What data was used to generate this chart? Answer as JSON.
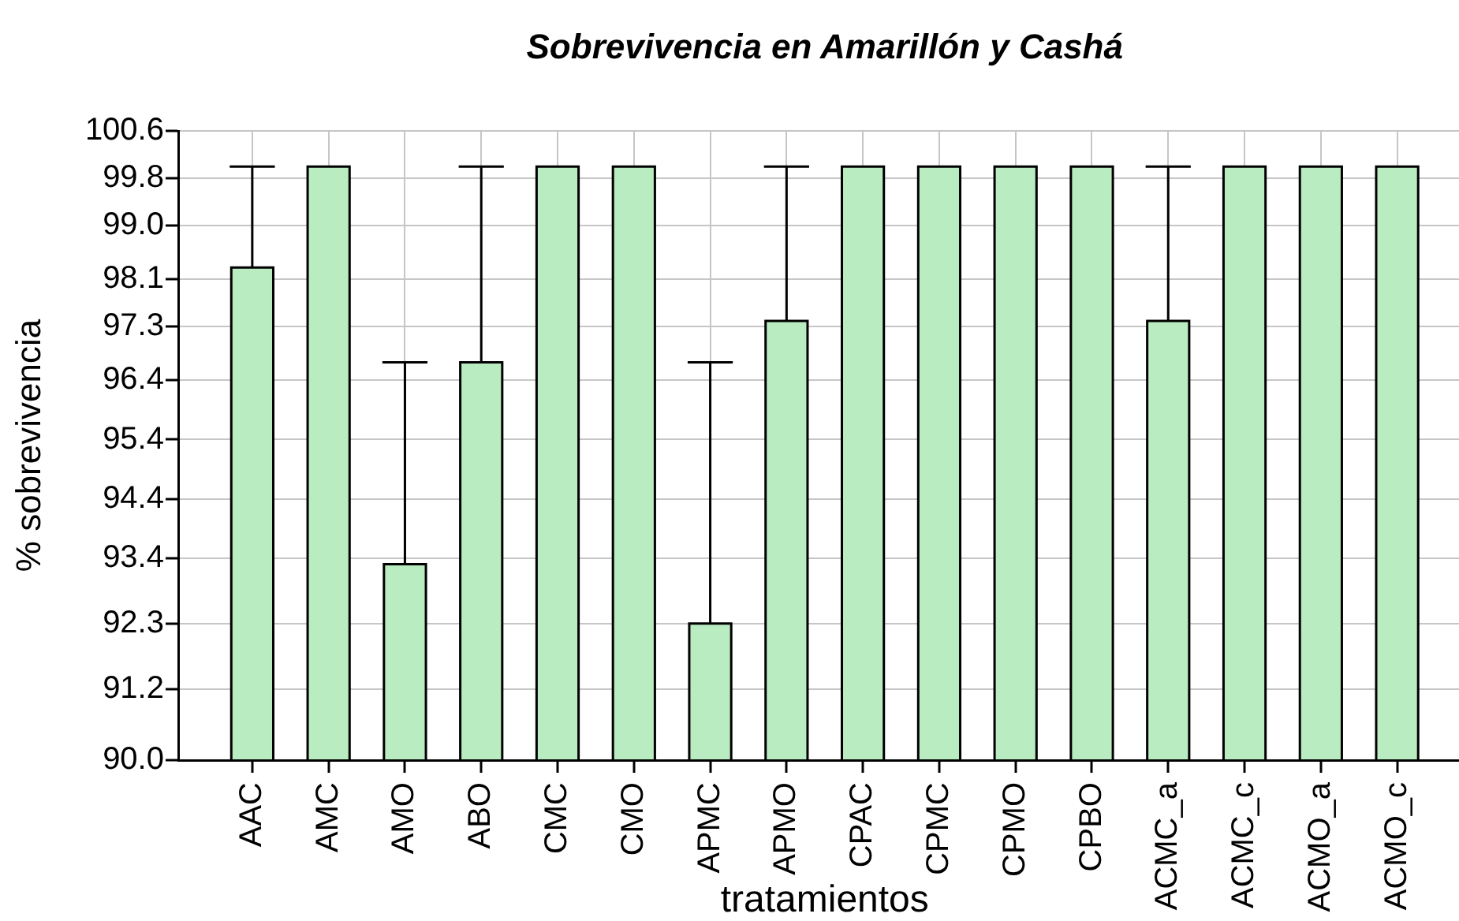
{
  "chart_data": {
    "type": "bar",
    "title": "Sobrevivencia en Amarillón y Cashá",
    "xlabel": "tratamientos",
    "ylabel": "% sobrevivencia",
    "categories": [
      "AAC",
      "AMC",
      "AMO",
      "ABO",
      "CMC",
      "CMO",
      "APMC",
      "APMO",
      "CPAC",
      "CPMC",
      "CPMO",
      "CPBO",
      "ACMC_a",
      "ACMC_c",
      "ACMO_a",
      "ACMO_c"
    ],
    "values": [
      98.3,
      100,
      93.3,
      96.7,
      100,
      100,
      92.3,
      97.4,
      100,
      100,
      100,
      100,
      97.4,
      100,
      100,
      100
    ],
    "color": "#b9ecc1",
    "errors": [
      [
        98.3,
        100
      ],
      null,
      [
        93.3,
        96.7
      ],
      [
        96.7,
        100
      ],
      null,
      null,
      [
        92.3,
        96.7
      ],
      [
        97.4,
        100
      ],
      null,
      null,
      null,
      null,
      [
        97.4,
        100
      ],
      null,
      null,
      null
    ],
    "ylim": [
      90,
      100.6
    ],
    "yticks": [
      {
        "value": 90,
        "label": "90.0"
      },
      91.2,
      92.3,
      93.4,
      94.4,
      95.4,
      96.4,
      97.3,
      98.1,
      {
        "value": 99,
        "label": "99.0"
      },
      99.8,
      100.6
    ],
    "grid": true,
    "legend": false
  }
}
